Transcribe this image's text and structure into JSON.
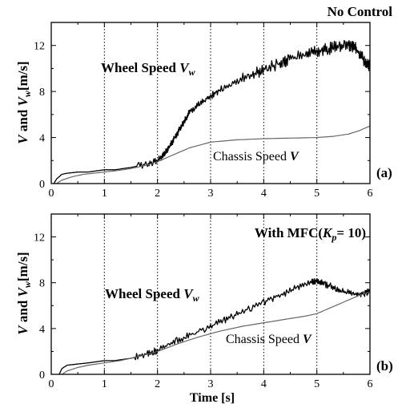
{
  "chart_data": [
    {
      "type": "line",
      "panel_label": "(a)",
      "condition": "No Control",
      "xlim": [
        0,
        6
      ],
      "ylim": [
        0,
        14
      ],
      "xticks": [
        0,
        1,
        2,
        3,
        4,
        5,
        6
      ],
      "yticks": [
        0,
        4,
        8,
        12
      ],
      "ylabel": "V and Vw [m/s]",
      "ylabel_parts": {
        "v": "V",
        "and": " and ",
        "vw_main": "V",
        "vw_sub": "w",
        "unit": "[m/s]"
      },
      "xlabel": "",
      "vertical_gridlines": [
        1,
        2,
        3,
        4,
        5
      ],
      "series": [
        {
          "name": "Wheel Speed Vw",
          "label_text": "Wheel Speed ",
          "label_var": "V",
          "label_sub": "w",
          "color": "#000000",
          "x": [
            0.05,
            0.1,
            0.2,
            0.3,
            0.5,
            0.7,
            1.0,
            1.2,
            1.5,
            1.8,
            2.0,
            2.1,
            2.2,
            2.3,
            2.4,
            2.5,
            2.6,
            2.8,
            3.0,
            3.2,
            3.5,
            3.8,
            4.0,
            4.3,
            4.5,
            4.8,
            5.0,
            5.2,
            5.4,
            5.6,
            5.7,
            5.8,
            5.9,
            6.0
          ],
          "y": [
            0.0,
            0.4,
            0.8,
            0.9,
            1.0,
            1.0,
            1.2,
            1.2,
            1.4,
            1.7,
            2.0,
            2.4,
            3.0,
            3.8,
            4.6,
            5.4,
            6.2,
            7.0,
            7.6,
            8.2,
            8.9,
            9.5,
            9.9,
            10.4,
            10.8,
            11.3,
            11.5,
            11.7,
            11.9,
            12.0,
            11.9,
            11.3,
            10.6,
            10.2
          ]
        },
        {
          "name": "Chassis Speed V",
          "label_text": "Chassis Speed ",
          "label_var": "V",
          "color": "#666666",
          "x": [
            0.1,
            0.2,
            0.4,
            0.6,
            0.8,
            1.0,
            1.2,
            1.5,
            1.8,
            2.0,
            2.3,
            2.6,
            3.0,
            3.5,
            4.0,
            4.5,
            5.0,
            5.3,
            5.6,
            5.8,
            6.0
          ],
          "y": [
            0.0,
            0.3,
            0.6,
            0.8,
            0.9,
            1.0,
            1.1,
            1.3,
            1.6,
            1.9,
            2.5,
            3.1,
            3.6,
            3.8,
            3.9,
            3.95,
            4.0,
            4.1,
            4.3,
            4.6,
            5.0
          ]
        }
      ]
    },
    {
      "type": "line",
      "panel_label": "(b)",
      "condition_main": "With MFC(",
      "condition_var": "K",
      "condition_sub": "p",
      "condition_rest": "= 10)",
      "xlim": [
        0,
        6
      ],
      "ylim": [
        0,
        14
      ],
      "xticks": [
        0,
        1,
        2,
        3,
        4,
        5,
        6
      ],
      "yticks": [
        0,
        4,
        8,
        12
      ],
      "ylabel": "V and Vw [m/s]",
      "ylabel_parts": {
        "v": "V",
        "and": " and ",
        "vw_main": "V",
        "vw_sub": "w",
        "unit": "[m/s]"
      },
      "xlabel": "Time [s]",
      "vertical_gridlines": [
        1,
        2,
        3,
        4,
        5
      ],
      "series": [
        {
          "name": "Wheel Speed Vw",
          "label_text": "Wheel Speed ",
          "label_var": "V",
          "label_sub": "w",
          "color": "#000000",
          "x": [
            0.15,
            0.2,
            0.3,
            0.5,
            0.7,
            1.0,
            1.2,
            1.5,
            1.8,
            2.0,
            2.3,
            2.6,
            3.0,
            3.3,
            3.6,
            4.0,
            4.3,
            4.6,
            4.9,
            5.0,
            5.1,
            5.3,
            5.5,
            5.7,
            5.9,
            6.0
          ],
          "y": [
            0.0,
            0.5,
            0.8,
            0.9,
            1.0,
            1.2,
            1.2,
            1.4,
            1.8,
            2.1,
            2.8,
            3.4,
            4.2,
            4.8,
            5.5,
            6.3,
            6.9,
            7.5,
            8.0,
            8.2,
            8.0,
            7.6,
            7.2,
            7.0,
            7.1,
            7.3
          ]
        },
        {
          "name": "Chassis Speed V",
          "label_text": "Chassis Speed ",
          "label_var": "V",
          "color": "#666666",
          "x": [
            0.2,
            0.3,
            0.5,
            0.7,
            1.0,
            1.3,
            1.6,
            2.0,
            2.4,
            2.8,
            3.2,
            3.6,
            4.0,
            4.4,
            4.8,
            5.0,
            5.2,
            5.4,
            5.6,
            5.8,
            6.0
          ],
          "y": [
            0.0,
            0.3,
            0.6,
            0.8,
            1.0,
            1.2,
            1.5,
            2.0,
            2.7,
            3.3,
            3.8,
            4.2,
            4.5,
            4.8,
            5.1,
            5.3,
            5.7,
            6.1,
            6.5,
            6.9,
            7.2
          ]
        }
      ]
    }
  ]
}
